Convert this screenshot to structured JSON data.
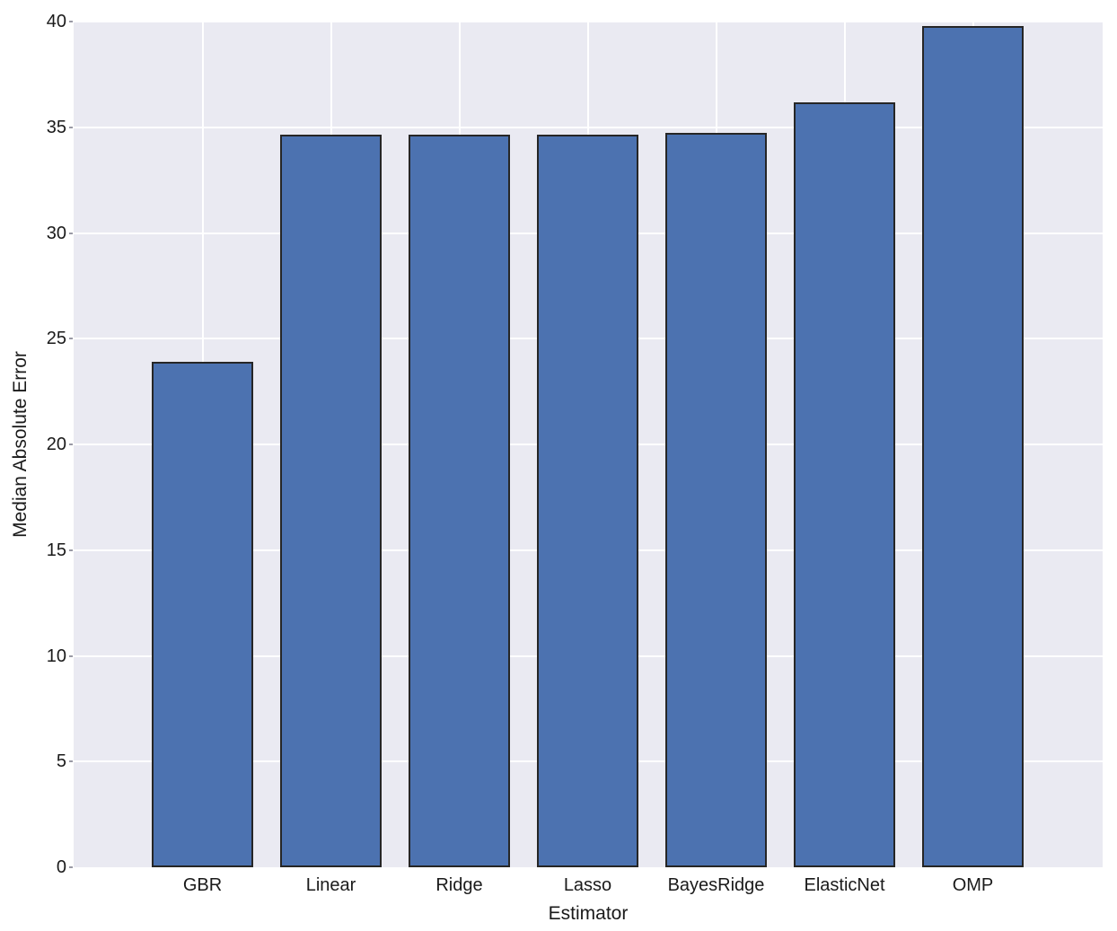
{
  "chart_data": {
    "type": "bar",
    "title": "",
    "xlabel": "Estimator",
    "ylabel": "Median Absolute Error",
    "categories": [
      "GBR",
      "Linear",
      "Ridge",
      "Lasso",
      "BayesRidge",
      "ElasticNet",
      "OMP"
    ],
    "values": [
      23.9,
      34.65,
      34.65,
      34.65,
      34.75,
      36.2,
      39.8
    ],
    "ylim": [
      0,
      40
    ],
    "yticks": [
      0,
      5,
      10,
      15,
      20,
      25,
      30,
      35,
      40
    ],
    "grid": true,
    "legend": "none",
    "colors": {
      "bar_fill": "#4C72B0",
      "bar_edge": "#262626",
      "plot_background": "#EAEAF2",
      "gridline": "#FFFFFF",
      "text": "#1A1A1A",
      "tick_mark": "#9A9AA5",
      "figure_background": "#FFFFFF"
    }
  }
}
